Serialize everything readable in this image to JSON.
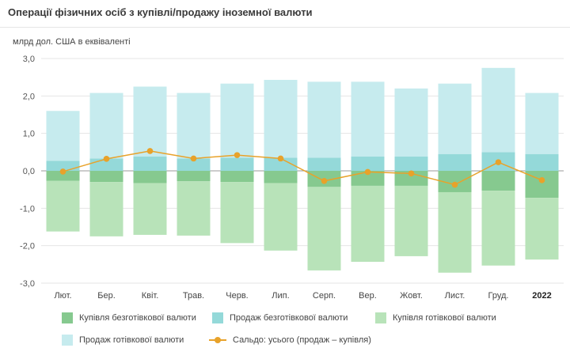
{
  "chart_data": {
    "type": "bar",
    "title": "Операції фізичних осіб з купівлі/продажу іноземної валюти",
    "ylabel": "млрд дол. США в еквіваленті",
    "ylim": [
      -3.0,
      3.0
    ],
    "yticks": [
      "3,0",
      "2,0",
      "1,0",
      "0,0",
      "-1,0",
      "-2,0",
      "-3,0"
    ],
    "ytick_values": [
      3,
      2,
      1,
      0,
      -1,
      -2,
      -3
    ],
    "categories": [
      "Лют.",
      "Бер.",
      "Квіт.",
      "Трав.",
      "Черв.",
      "Лип.",
      "Серп.",
      "Вер.",
      "Жовт.",
      "Лист.",
      "Груд.",
      "2022"
    ],
    "bold_category": "2022",
    "series": [
      {
        "name": "Купівля безготівкової валюти",
        "color": "#86c98f",
        "kind": "bar-neg",
        "values": [
          -0.27,
          -0.3,
          -0.33,
          -0.28,
          -0.3,
          -0.33,
          -0.43,
          -0.4,
          -0.4,
          -0.57,
          -0.53,
          -0.72
        ]
      },
      {
        "name": "Продаж безготівкової валюти",
        "color": "#94d9d9",
        "kind": "bar-pos",
        "values": [
          0.27,
          0.33,
          0.38,
          0.33,
          0.35,
          0.35,
          0.35,
          0.38,
          0.38,
          0.45,
          0.5,
          0.45
        ]
      },
      {
        "name": "Купівля готівкової валюти",
        "color": "#b8e3b9",
        "kind": "bar-neg-stack",
        "values": [
          -1.35,
          -1.45,
          -1.38,
          -1.45,
          -1.63,
          -1.8,
          -2.23,
          -2.03,
          -1.88,
          -2.15,
          -2.0,
          -1.65
        ]
      },
      {
        "name": "Продаж готівкової валюти",
        "color": "#c6ebee",
        "kind": "bar-pos-stack",
        "values": [
          1.33,
          1.75,
          1.87,
          1.75,
          1.98,
          2.08,
          2.03,
          2.0,
          1.82,
          1.88,
          2.25,
          1.63
        ]
      },
      {
        "name": "Сальдо: усього (продаж – купівля)",
        "color": "#e8a22a",
        "kind": "line",
        "values": [
          -0.02,
          0.32,
          0.53,
          0.33,
          0.42,
          0.33,
          -0.27,
          -0.03,
          -0.07,
          -0.37,
          0.23,
          -0.25
        ]
      }
    ],
    "legend": "bottom"
  }
}
